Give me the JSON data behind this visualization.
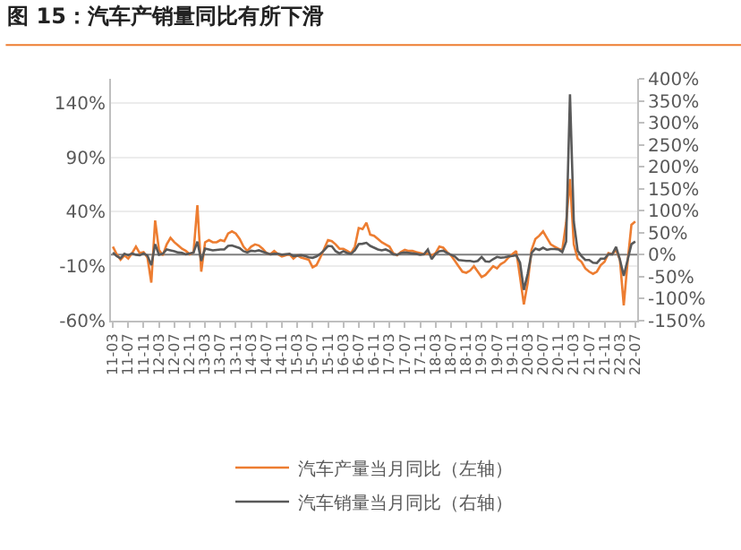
{
  "chart_data": {
    "type": "line",
    "title": "图 15：汽车产销量同比有所下滑",
    "categories": [
      "11-03",
      null,
      null,
      null,
      "11-07",
      null,
      null,
      null,
      "11-11",
      null,
      null,
      null,
      "12-03",
      null,
      null,
      null,
      "12-07",
      null,
      null,
      null,
      "12-11",
      null,
      null,
      null,
      "13-03",
      null,
      null,
      null,
      "13-07",
      null,
      null,
      null,
      "13-11",
      null,
      null,
      null,
      "14-03",
      null,
      null,
      null,
      "14-07",
      null,
      null,
      null,
      "14-11",
      null,
      null,
      null,
      "15-03",
      null,
      null,
      null,
      "15-07",
      null,
      null,
      null,
      "15-11",
      null,
      null,
      null,
      "16-03",
      null,
      null,
      null,
      "16-07",
      null,
      null,
      null,
      "16-11",
      null,
      null,
      null,
      "17-03",
      null,
      null,
      null,
      "17-07",
      null,
      null,
      null,
      "17-11",
      null,
      null,
      null,
      "18-03",
      null,
      null,
      null,
      "18-07",
      null,
      null,
      null,
      "18-11",
      null,
      null,
      null,
      "19-03",
      null,
      null,
      null,
      "19-07",
      null,
      null,
      null,
      "19-11",
      null,
      null,
      null,
      "20-03",
      null,
      null,
      null,
      "20-07",
      null,
      null,
      null,
      "20-11",
      null,
      null,
      null,
      "21-03",
      null,
      null,
      null,
      "21-07",
      null,
      null,
      null,
      "21-11",
      null,
      null,
      null,
      "22-03",
      null,
      null,
      null,
      "22-07"
    ],
    "series": [
      {
        "name": "汽车产量当月同比（左轴）",
        "color": "#ed7d31",
        "values": [
          8,
          1,
          -4,
          0,
          -3,
          2,
          8,
          2,
          3,
          -2,
          -25,
          32,
          5,
          0,
          10,
          16,
          12,
          9,
          6,
          4,
          1,
          3,
          46,
          -15,
          12,
          14,
          12,
          12,
          14,
          13,
          20,
          22,
          20,
          15,
          8,
          4,
          8,
          10,
          9,
          6,
          2,
          1,
          4,
          1,
          -1,
          0,
          1,
          -3,
          0,
          -2,
          -3,
          -4,
          -11,
          -9,
          -2,
          6,
          14,
          13,
          10,
          6,
          6,
          4,
          2,
          8,
          25,
          24,
          30,
          19,
          18,
          15,
          12,
          10,
          8,
          2,
          0,
          3,
          5,
          4,
          4,
          3,
          2,
          1,
          2,
          0,
          2,
          8,
          7,
          3,
          0,
          -5,
          -10,
          -15,
          -16,
          -14,
          -10,
          -15,
          -20,
          -18,
          -14,
          -10,
          -12,
          -8,
          -6,
          -2,
          1,
          4,
          -20,
          -45,
          -25,
          5,
          15,
          18,
          22,
          16,
          10,
          8,
          6,
          5,
          30,
          70,
          10,
          -3,
          -6,
          -12,
          -15,
          -17,
          -15,
          -9,
          -6,
          2,
          1,
          5,
          -4,
          -46,
          -6,
          28,
          31
        ]
      },
      {
        "name": "汽车销量当月同比（右轴）",
        "color": "#595959",
        "axis": "y2",
        "values": [
          5,
          -3,
          -8,
          2,
          -1,
          3,
          0,
          -1,
          3,
          -2,
          -24,
          24,
          0,
          2,
          12,
          10,
          8,
          5,
          4,
          1,
          3,
          5,
          30,
          -14,
          14,
          12,
          10,
          11,
          12,
          12,
          20,
          21,
          18,
          15,
          8,
          5,
          9,
          8,
          10,
          7,
          4,
          1,
          2,
          2,
          0,
          1,
          2,
          -3,
          -2,
          -1,
          -3,
          -6,
          -7,
          -4,
          2,
          10,
          20,
          19,
          8,
          3,
          8,
          4,
          2,
          10,
          24,
          25,
          27,
          20,
          16,
          12,
          10,
          12,
          8,
          1,
          0,
          4,
          5,
          4,
          3,
          2,
          0,
          1,
          12,
          -10,
          2,
          8,
          9,
          4,
          0,
          -4,
          -12,
          -13,
          -14,
          -14,
          -16,
          -14,
          -5,
          -15,
          -16,
          -10,
          -5,
          -7,
          -6,
          -4,
          -3,
          -1,
          -18,
          -80,
          -43,
          4,
          14,
          11,
          16,
          11,
          13,
          13,
          12,
          6,
          30,
          365,
          75,
          9,
          -3,
          -12,
          -12,
          -18,
          -19,
          -9,
          -9,
          1,
          1,
          18,
          -11,
          -48,
          -12,
          24,
          30
        ]
      }
    ],
    "ylim": [
      -60,
      162
    ],
    "yticks": [
      {
        "value": -60,
        "label": "-60%"
      },
      {
        "value": -10,
        "label": "-10%"
      },
      {
        "value": 40,
        "label": "40%"
      },
      {
        "value": 90,
        "label": "90%"
      },
      {
        "value": 140,
        "label": "140%"
      }
    ],
    "y2lim": [
      -150,
      400
    ],
    "y2ticks": [
      {
        "value": -150,
        "label": "-150%"
      },
      {
        "value": -100,
        "label": "-100%"
      },
      {
        "value": -50,
        "label": "-50%"
      },
      {
        "value": 0,
        "label": "0%"
      },
      {
        "value": 50,
        "label": "50%"
      },
      {
        "value": 100,
        "label": "100%"
      },
      {
        "value": 150,
        "label": "150%"
      },
      {
        "value": 200,
        "label": "200%"
      },
      {
        "value": 250,
        "label": "250%"
      },
      {
        "value": 300,
        "label": "300%"
      },
      {
        "value": 350,
        "label": "350%"
      },
      {
        "value": 400,
        "label": "400%"
      }
    ],
    "ref_lines": [
      {
        "axis": "y2",
        "value": 0,
        "color": "#7f7f7f"
      }
    ],
    "grid": "y",
    "legend": "bottom",
    "marker": "none",
    "line_style": "solid"
  }
}
